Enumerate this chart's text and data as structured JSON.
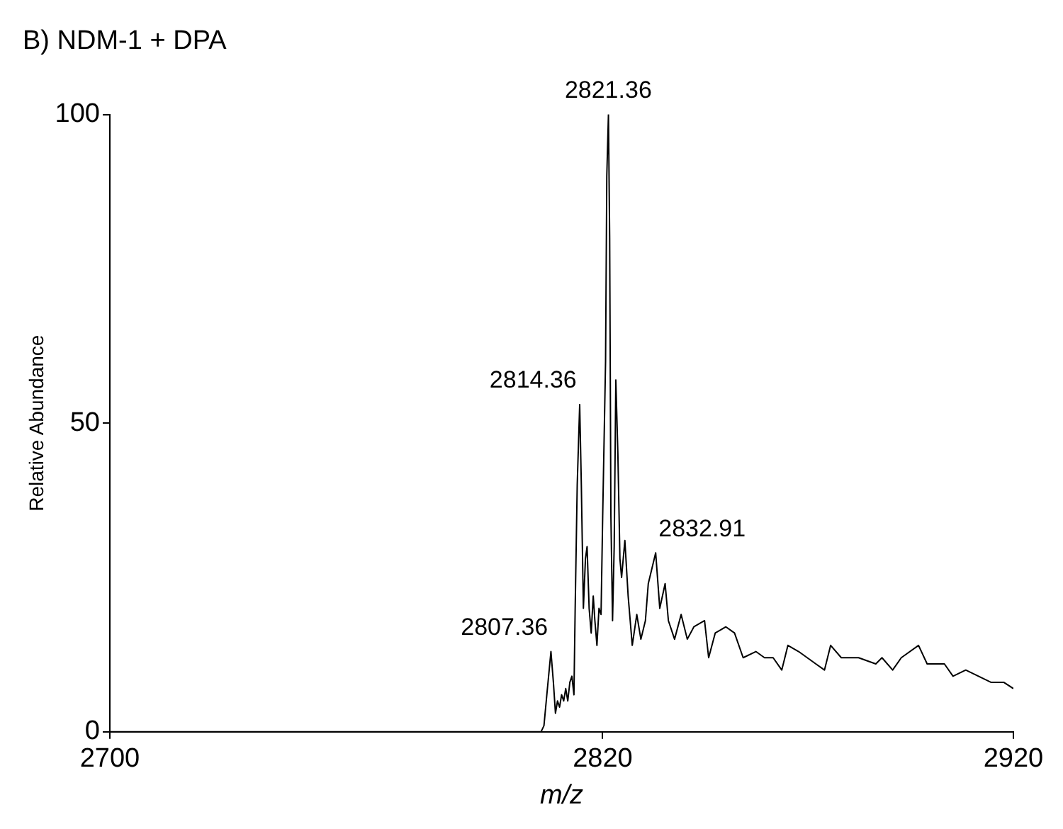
{
  "chart_data": {
    "type": "line",
    "title": "B) NDM-1 + DPA",
    "xlabel": "m/z",
    "ylabel": "Relative Abundance",
    "xlim": [
      2700,
      2920
    ],
    "xticks": [
      2700,
      2820,
      2920
    ],
    "ylim": [
      0,
      100
    ],
    "yticks": [
      0,
      50,
      100
    ],
    "grid": false,
    "legend": false,
    "marker": "none",
    "line_style": "solid",
    "series": [
      {
        "color": "#000000",
        "x": [
          2700,
          2720,
          2740,
          2760,
          2780,
          2800,
          2805.0,
          2805.7,
          2806.4,
          2807.4,
          2808.0,
          2808.5,
          2809.0,
          2809.5,
          2810.0,
          2810.5,
          2811.0,
          2811.5,
          2812.0,
          2812.5,
          2813.0,
          2813.3,
          2813.8,
          2814.4,
          2814.8,
          2815.3,
          2815.8,
          2816.2,
          2816.7,
          2817.2,
          2817.7,
          2818.1,
          2818.6,
          2819.1,
          2819.6,
          2820.0,
          2820.7,
          2821.0,
          2821.4,
          2821.7,
          2822.0,
          2822.4,
          2822.8,
          2823.2,
          2823.7,
          2824.2,
          2824.6,
          2825.4,
          2826.2,
          2827.2,
          2828.3,
          2829.3,
          2830.4,
          2831.1,
          2832.9,
          2833.9,
          2835.2,
          2836.0,
          2837.5,
          2839.1,
          2840.6,
          2842.2,
          2844.8,
          2845.8,
          2847.4,
          2850.0,
          2852.1,
          2854.2,
          2857.3,
          2859.4,
          2861.5,
          2863.6,
          2865.1,
          2867.7,
          2871.9,
          2874.0,
          2875.5,
          2878.1,
          2882.3,
          2886.5,
          2888.0,
          2890.6,
          2892.7,
          2896.9,
          2899.0,
          2903.2,
          2905.3,
          2908.4,
          2911.5,
          2914.6,
          2917.7,
          2920
        ],
        "values": [
          0,
          0,
          0,
          0,
          0,
          0,
          0,
          1,
          6,
          13,
          8,
          3,
          5,
          4,
          6,
          5,
          7,
          5,
          8,
          9,
          6,
          20,
          40,
          53,
          40,
          20,
          28,
          30,
          20,
          16,
          22,
          18,
          14,
          20,
          19,
          35,
          60,
          90,
          100,
          80,
          35,
          18,
          30,
          57,
          45,
          28,
          25,
          31,
          22,
          14,
          19,
          15,
          18,
          24,
          29,
          20,
          24,
          18,
          15,
          19,
          15,
          17,
          18,
          12,
          16,
          17,
          16,
          12,
          13,
          12,
          12,
          10,
          14,
          13,
          11,
          10,
          14,
          12,
          12,
          11,
          12,
          10,
          12,
          14,
          11,
          11,
          9,
          10,
          9,
          8,
          8,
          7
        ]
      }
    ],
    "annotations": [
      {
        "text": "2821.36",
        "x": 2821.36,
        "y": 100
      },
      {
        "text": "2814.36",
        "x": 2814.36,
        "y": 53
      },
      {
        "text": "2807.36",
        "x": 2807.36,
        "y": 13
      },
      {
        "text": "2832.91",
        "x": 2832.91,
        "y": 29
      }
    ]
  }
}
